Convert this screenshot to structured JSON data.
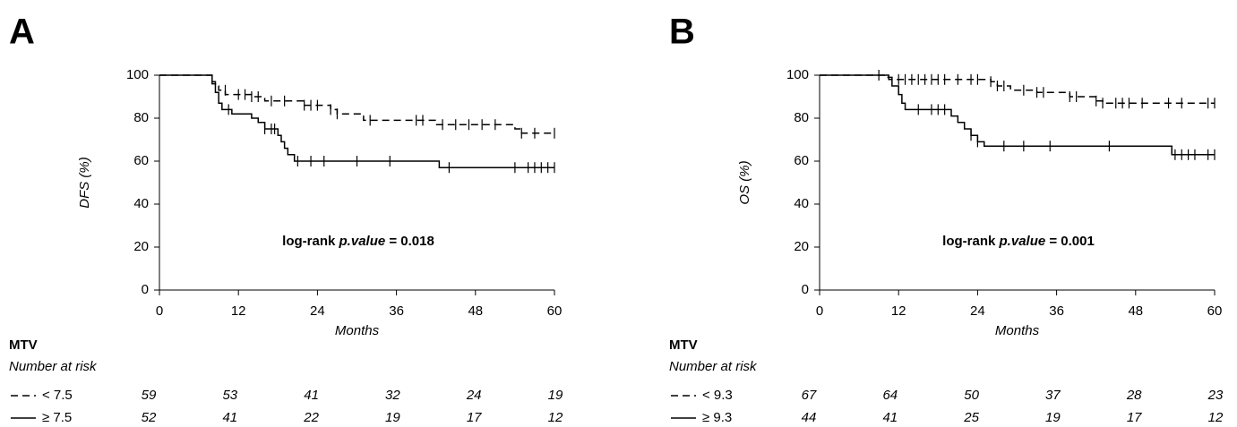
{
  "chart_data": [
    {
      "type": "line",
      "step": true,
      "panel": "A",
      "y_label": "DFS (%)",
      "x_label": "Months",
      "annotation": [
        "log-rank",
        "p.value",
        "= 0.018"
      ],
      "xlim": [
        0,
        60
      ],
      "ylim": [
        0,
        100
      ],
      "xticks": [
        0,
        12,
        24,
        36,
        48,
        60
      ],
      "yticks": [
        0,
        20,
        40,
        60,
        80,
        100
      ],
      "series": [
        {
          "name": "< 7.5",
          "color": "#000000",
          "line_style": "dashed",
          "x": [
            0,
            8,
            8.5,
            9,
            10,
            12,
            14,
            16,
            22,
            26,
            27,
            31,
            42,
            54,
            55,
            60
          ],
          "values": [
            100,
            97,
            95,
            93,
            91,
            91,
            90,
            88,
            86,
            84,
            82,
            79,
            77,
            75,
            73,
            73
          ],
          "censored": {
            "x": [
              10,
              12,
              13,
              14,
              15,
              17,
              19,
              22,
              23,
              24,
              26,
              27,
              32,
              39,
              40,
              43,
              45,
              47,
              49,
              51,
              55,
              57,
              60
            ],
            "values": [
              93,
              91,
              91,
              90,
              90,
              88,
              88,
              86,
              86,
              86,
              84,
              82,
              79,
              79,
              79,
              77,
              77,
              77,
              77,
              77,
              73,
              73,
              73
            ]
          }
        },
        {
          "name": "≥ 7.5",
          "color": "#000000",
          "line_style": "solid",
          "x": [
            0,
            8,
            8.5,
            9,
            9.5,
            10,
            11,
            14,
            15,
            16,
            18,
            18.5,
            19,
            19.5,
            20.5,
            42.5,
            60
          ],
          "values": [
            100,
            96,
            92,
            87,
            84,
            84,
            82,
            80,
            78,
            75,
            72,
            69,
            66,
            63,
            60,
            57,
            57
          ],
          "censored": {
            "x": [
              10.5,
              16,
              17,
              17.5,
              21,
              23,
              25,
              30,
              35,
              44,
              54,
              56,
              57,
              58,
              59,
              60
            ],
            "values": [
              84,
              75,
              75,
              75,
              60,
              60,
              60,
              60,
              60,
              57,
              57,
              57,
              57,
              57,
              57,
              57
            ]
          }
        }
      ],
      "risk_table": {
        "title": "MTV",
        "subtitle": "Number at risk",
        "rows": [
          [
            59,
            53,
            41,
            32,
            24,
            19
          ],
          [
            52,
            41,
            22,
            19,
            17,
            12
          ]
        ]
      }
    },
    {
      "type": "line",
      "step": true,
      "panel": "B",
      "y_label": "OS (%)",
      "x_label": "Months",
      "annotation": [
        "log-rank",
        "p.value",
        "= 0.001"
      ],
      "xlim": [
        0,
        60
      ],
      "ylim": [
        0,
        100
      ],
      "xticks": [
        0,
        12,
        24,
        36,
        48,
        60
      ],
      "yticks": [
        0,
        20,
        40,
        60,
        80,
        100
      ],
      "series": [
        {
          "name": "< 9.3",
          "color": "#000000",
          "line_style": "dashed",
          "x": [
            0,
            10,
            11,
            26,
            27,
            29,
            33,
            38,
            42,
            43,
            60
          ],
          "values": [
            100,
            99,
            98,
            97,
            95,
            93,
            92,
            90,
            88,
            87,
            87
          ],
          "censored": {
            "x": [
              9,
              12,
              13,
              14,
              15,
              16,
              17,
              18,
              19,
              21,
              23,
              24,
              26,
              27,
              28,
              31,
              33,
              34,
              38,
              39,
              42,
              43,
              45,
              46,
              47,
              49,
              53,
              55,
              59,
              60
            ],
            "values": [
              100,
              98,
              98,
              98,
              98,
              98,
              98,
              98,
              98,
              98,
              98,
              98,
              97,
              95,
              95,
              93,
              92,
              92,
              90,
              90,
              88,
              87,
              87,
              87,
              87,
              87,
              87,
              87,
              87,
              87
            ]
          }
        },
        {
          "name": "≥ 9.3",
          "color": "#000000",
          "line_style": "solid",
          "x": [
            0,
            10.5,
            11,
            12,
            12.5,
            13,
            20,
            21,
            22,
            23,
            24,
            25,
            53.5,
            60
          ],
          "values": [
            100,
            98,
            95,
            91,
            87,
            84,
            81,
            78,
            75,
            72,
            69,
            67,
            63,
            63
          ],
          "censored": {
            "x": [
              15,
              17,
              18,
              19,
              23,
              24,
              28,
              31,
              35,
              44,
              54,
              55,
              56,
              57,
              59,
              60
            ],
            "values": [
              84,
              84,
              84,
              84,
              72,
              69,
              67,
              67,
              67,
              67,
              63,
              63,
              63,
              63,
              63,
              63
            ]
          }
        }
      ],
      "risk_table": {
        "title": "MTV",
        "subtitle": "Number at risk",
        "rows": [
          [
            67,
            64,
            50,
            37,
            28,
            23
          ],
          [
            44,
            41,
            25,
            19,
            17,
            12
          ]
        ]
      }
    }
  ]
}
